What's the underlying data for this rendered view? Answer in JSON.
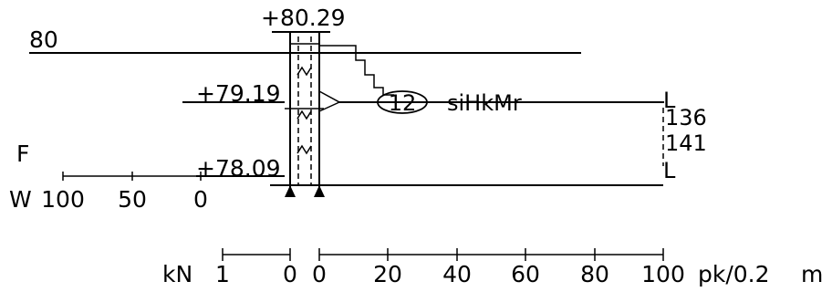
{
  "elevations": {
    "top": "+80.29",
    "ref": "80",
    "mid": "+79.19",
    "bottom": "+78.09"
  },
  "callout": {
    "number": "12",
    "text": "siHkMr"
  },
  "right_marks": {
    "top": "L",
    "value_a": "136",
    "value_b": "141",
    "bottom": "L"
  },
  "left_scale": {
    "f_label": "F",
    "w_label": "W",
    "ticks": [
      "100",
      "50",
      "0"
    ]
  },
  "bottom_scale": {
    "unit_left": "kN",
    "left_ticks": [
      "1",
      "0"
    ],
    "right_ticks": [
      "0",
      "20",
      "40",
      "60",
      "80",
      "100"
    ],
    "unit_right": "pk/0.2",
    "unit_m": "m"
  }
}
